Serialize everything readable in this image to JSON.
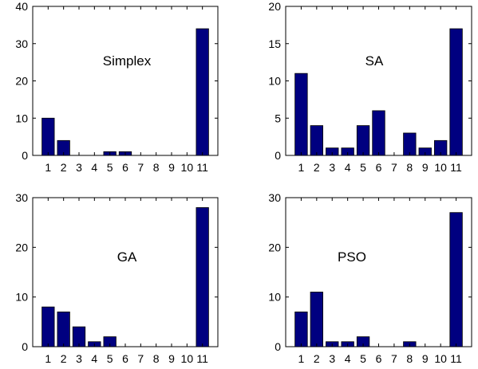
{
  "colors": {
    "bar": "#000080",
    "axis": "#000000",
    "background": "#ffffff"
  },
  "chart_data": [
    {
      "type": "bar",
      "title": "Simplex",
      "categories": [
        "1",
        "2",
        "3",
        "4",
        "5",
        "6",
        "7",
        "8",
        "9",
        "10",
        "11"
      ],
      "values": [
        10,
        4,
        0,
        0,
        1,
        1,
        0,
        0,
        0,
        0,
        34
      ],
      "ylim": [
        0,
        40
      ],
      "yticks": [
        0,
        10,
        20,
        30,
        40
      ],
      "xlabel": "",
      "ylabel": "",
      "grid": false
    },
    {
      "type": "bar",
      "title": "SA",
      "categories": [
        "1",
        "2",
        "3",
        "4",
        "5",
        "6",
        "7",
        "8",
        "9",
        "10",
        "11"
      ],
      "values": [
        11,
        4,
        1,
        1,
        4,
        6,
        0,
        3,
        1,
        2,
        17
      ],
      "ylim": [
        0,
        20
      ],
      "yticks": [
        0,
        5,
        10,
        15,
        20
      ],
      "xlabel": "",
      "ylabel": "",
      "grid": false
    },
    {
      "type": "bar",
      "title": "GA",
      "categories": [
        "1",
        "2",
        "3",
        "4",
        "5",
        "6",
        "7",
        "8",
        "9",
        "10",
        "11"
      ],
      "values": [
        8,
        7,
        4,
        1,
        2,
        0,
        0,
        0,
        0,
        0,
        28
      ],
      "ylim": [
        0,
        30
      ],
      "yticks": [
        0,
        10,
        20,
        30
      ],
      "xlabel": "",
      "ylabel": "",
      "grid": false
    },
    {
      "type": "bar",
      "title": "PSO",
      "categories": [
        "1",
        "2",
        "3",
        "4",
        "5",
        "6",
        "7",
        "8",
        "9",
        "10",
        "11"
      ],
      "values": [
        7,
        11,
        1,
        1,
        2,
        0,
        0,
        1,
        0,
        0,
        27
      ],
      "ylim": [
        0,
        30
      ],
      "yticks": [
        0,
        10,
        20,
        30
      ],
      "xlabel": "",
      "ylabel": "",
      "grid": false
    }
  ]
}
